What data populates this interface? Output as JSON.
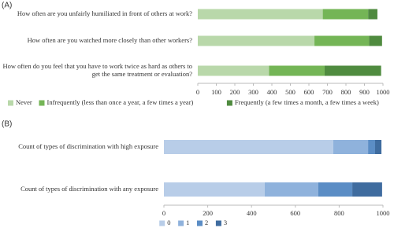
{
  "chart_data": [
    {
      "type": "bar",
      "orientation": "horizontal",
      "stacked": true,
      "panel_label": "(A)",
      "categories": [
        "How often are you unfairly humiliated in front of others at work?",
        "How often are you watched more closely than other workers?",
        "How often do you feel that you have to work twice as hard as others to get the same treatment or evaluation?"
      ],
      "series": [
        {
          "name": "Never",
          "color": "#b9d8aa",
          "values": [
            675,
            630,
            385
          ]
        },
        {
          "name": "Infrequently (less than once a year, a few times a year)",
          "color": "#74b556",
          "values": [
            245,
            295,
            300
          ]
        },
        {
          "name": "Frequently (a few times a month, a few times a week)",
          "color": "#4f8b3f",
          "values": [
            50,
            70,
            305
          ]
        }
      ],
      "xlim": [
        0,
        1000
      ],
      "xticks": [
        0,
        100,
        200,
        300,
        400,
        500,
        600,
        700,
        800,
        900,
        1000
      ],
      "grid": false,
      "legend": "bottom"
    },
    {
      "type": "bar",
      "orientation": "horizontal",
      "stacked": true,
      "panel_label": "(B)",
      "categories": [
        "Count of types of discrimination with high exposure",
        "Count of types of discrimination with any exposure"
      ],
      "series": [
        {
          "name": "0",
          "color": "#b8cde8",
          "values": [
            773,
            460
          ]
        },
        {
          "name": "1",
          "color": "#8fb2dc",
          "values": [
            159,
            245
          ]
        },
        {
          "name": "2",
          "color": "#5b8dc5",
          "values": [
            32,
            155
          ]
        },
        {
          "name": "3",
          "color": "#3f6c9f",
          "values": [
            29,
            136
          ]
        }
      ],
      "xlim": [
        0,
        1000
      ],
      "xticks": [
        0,
        200,
        400,
        600,
        800,
        1000
      ],
      "grid": false,
      "legend": "bottom"
    }
  ]
}
